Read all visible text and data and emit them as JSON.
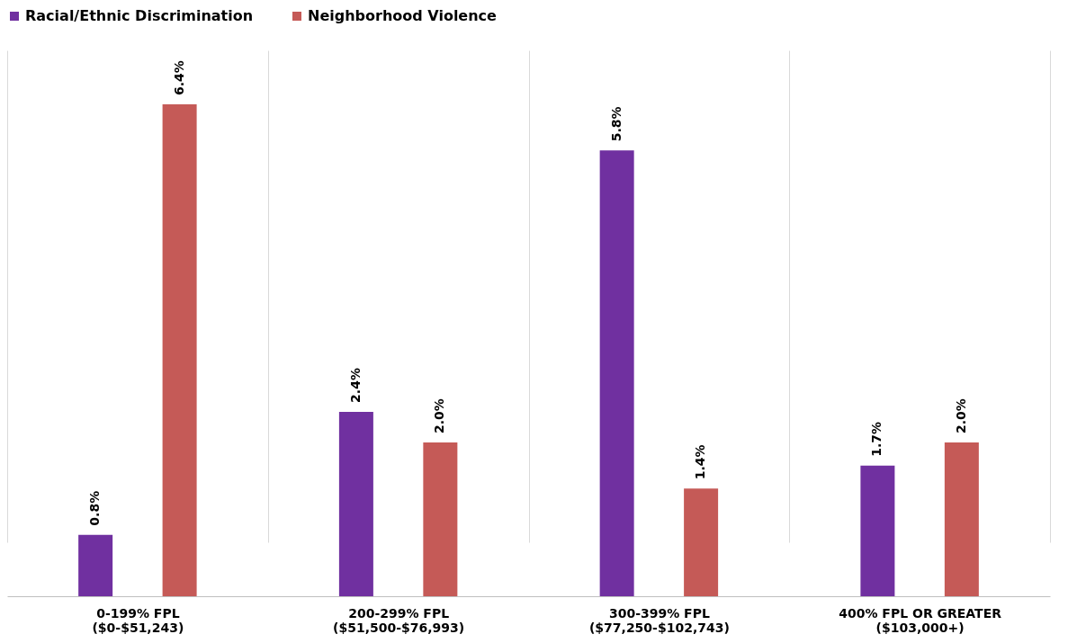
{
  "chart_data": {
    "type": "bar",
    "categories": [
      "0-199% FPL\n($0-$51,243)",
      "200-299% FPL\n($51,500-$76,993)",
      "300-399% FPL\n($77,250-$102,743)",
      "400% FPL OR GREATER\n($103,000+)"
    ],
    "series": [
      {
        "name": "Racial/Ethnic Discrimination",
        "color": "#7030a0",
        "values": [
          0.8,
          2.4,
          5.8,
          1.7
        ],
        "value_labels": [
          "0.8%",
          "2.4%",
          "5.8%",
          "1.7%"
        ]
      },
      {
        "name": "Neighborhood Violence",
        "color": "#c55a57",
        "values": [
          6.4,
          2.0,
          1.4,
          2.0
        ],
        "value_labels": [
          "6.4%",
          "2.0%",
          "1.4%",
          "2.0%"
        ]
      }
    ],
    "tick_labels": "x",
    "grid": "x",
    "legend": "top"
  }
}
